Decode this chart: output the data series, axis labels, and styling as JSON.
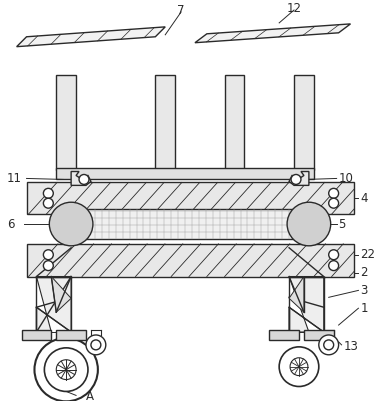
{
  "background_color": "#ffffff",
  "line_color": "#2a2a2a",
  "label_color": "#2a2a2a",
  "figsize": [
    3.81,
    4.04
  ],
  "dpi": 100
}
